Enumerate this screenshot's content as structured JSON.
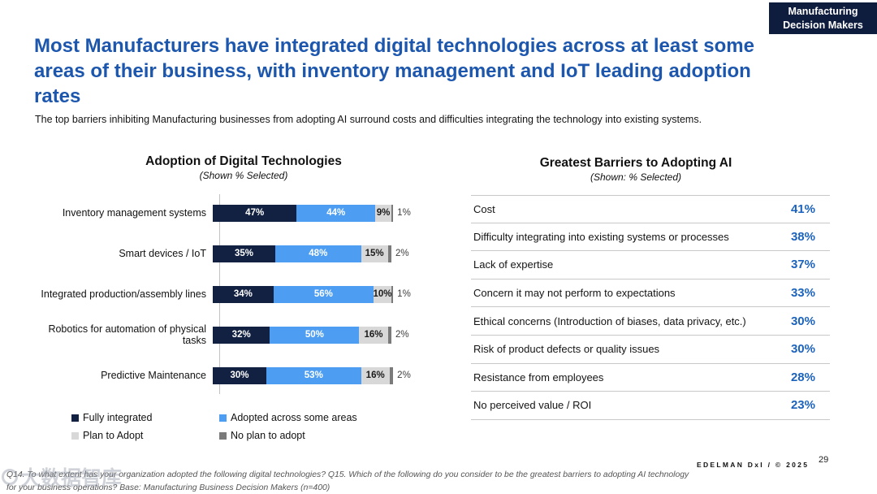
{
  "badge": {
    "line1": "Manufacturing",
    "line2": "Decision Makers"
  },
  "header": {
    "title": "Most Manufacturers have integrated digital technologies across at least some areas of their business, with inventory management and IoT leading adoption rates",
    "subtitle": "The top barriers inhibiting Manufacturing businesses from adopting AI surround costs and difficulties integrating the technology into existing systems."
  },
  "colors": {
    "title_blue": "#1d57ad",
    "value_blue": "#1b62bd",
    "badge_navy": "#0e1c3e",
    "bar_navy": "#122142",
    "bar_light_blue": "#4d9ef3",
    "bar_light_gray": "#d8d8d8",
    "bar_dark_gray": "#7a7a7a"
  },
  "chart_data": [
    {
      "type": "bar",
      "orientation": "horizontal",
      "stacked": true,
      "title": "Adoption of Digital Technologies",
      "subtitle": "(Shown % Selected)",
      "value_suffix": "%",
      "xlim": [
        0,
        100
      ],
      "categories": [
        "Inventory management systems",
        "Smart devices / IoT",
        "Integrated production/assembly lines",
        "Robotics for automation of physical tasks",
        "Predictive Maintenance"
      ],
      "series": [
        {
          "name": "Fully integrated",
          "color": "#122142",
          "label_color": "#ffffff",
          "values": [
            47,
            35,
            34,
            32,
            30
          ]
        },
        {
          "name": "Adopted across some areas",
          "color": "#4d9ef3",
          "label_color": "#ffffff",
          "values": [
            44,
            48,
            56,
            50,
            53
          ]
        },
        {
          "name": "Plan to Adopt",
          "color": "#d8d8d8",
          "label_color": "#1a1a1a",
          "values": [
            9,
            15,
            10,
            16,
            16
          ]
        },
        {
          "name": "No plan to adopt",
          "color": "#7a7a7a",
          "label_color": "#3f3f3f",
          "values": [
            1,
            2,
            1,
            2,
            2
          ]
        }
      ],
      "legend_position": "bottom-left"
    },
    {
      "type": "table",
      "title": "Greatest Barriers to Adopting AI",
      "subtitle": "(Shown: % Selected)",
      "rows": [
        {
          "label": "Cost",
          "value": "41%"
        },
        {
          "label": "Difficulty integrating into existing systems or processes",
          "value": "38%"
        },
        {
          "label": "Lack of expertise",
          "value": "37%"
        },
        {
          "label": "Concern it may not perform to expectations",
          "value": "33%"
        },
        {
          "label": "Ethical concerns (Introduction of biases, data privacy, etc.)",
          "value": "30%"
        },
        {
          "label": "Risk of product defects or quality issues",
          "value": "30%"
        },
        {
          "label": "Resistance from employees",
          "value": "28%"
        },
        {
          "label": "No perceived value / ROI",
          "value": "23%"
        }
      ]
    }
  ],
  "footer": {
    "note": "Q14. To what extent has your organization adopted the following digital technologies? Q15. Which of the following do you consider to be the greatest barriers to adopting AI technology for your business operations? Base: Manufacturing Business Decision Makers  (n=400)",
    "brand": "EDELMAN DxI / © 2025",
    "page_number": "29",
    "watermark": "大数据智库"
  }
}
